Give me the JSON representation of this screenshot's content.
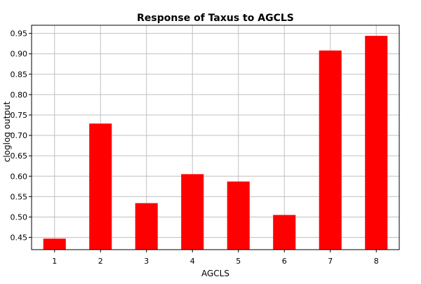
{
  "chart_data": {
    "type": "bar",
    "title": "Response of Taxus to AGCLS",
    "xlabel": "AGCLS",
    "ylabel": "cloglog output",
    "categories": [
      "1",
      "2",
      "3",
      "4",
      "5",
      "6",
      "7",
      "8"
    ],
    "values": [
      0.447,
      0.729,
      0.534,
      0.605,
      0.587,
      0.505,
      0.908,
      0.944
    ],
    "ylim": [
      0.42,
      0.97
    ],
    "yticks": [
      "0.45",
      "0.50",
      "0.55",
      "0.60",
      "0.65",
      "0.70",
      "0.75",
      "0.80",
      "0.85",
      "0.90",
      "0.95"
    ],
    "grid": true,
    "legend": "none",
    "bar_color": "#ff0000",
    "grid_color": "#c0c0c0"
  }
}
